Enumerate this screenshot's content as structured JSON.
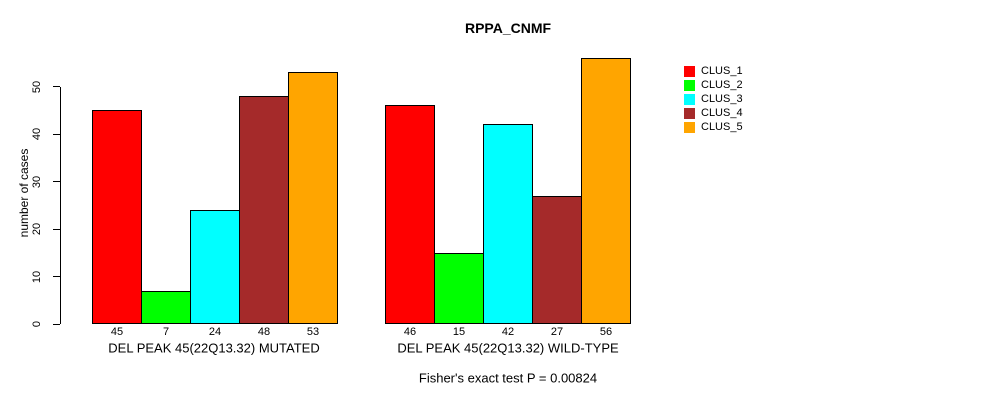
{
  "chart_data": {
    "type": "bar",
    "title": "RPPA_CNMF",
    "ylabel": "number of cases",
    "ylim": [
      0,
      56
    ],
    "yticks": [
      0,
      10,
      20,
      30,
      40,
      50
    ],
    "grid": false,
    "legend_position": "right",
    "series_names": [
      "CLUS_1",
      "CLUS_2",
      "CLUS_3",
      "CLUS_4",
      "CLUS_5"
    ],
    "series_colors": [
      "#FF0000",
      "#00FF00",
      "#00FFFF",
      "#A52A2A",
      "#FFA500"
    ],
    "groups": [
      {
        "label": "DEL PEAK 45(22Q13.32) MUTATED",
        "values": [
          45,
          7,
          24,
          48,
          53
        ]
      },
      {
        "label": "DEL PEAK 45(22Q13.32) WILD-TYPE",
        "values": [
          46,
          15,
          42,
          27,
          56
        ]
      }
    ],
    "annotation": "Fisher's exact test P = 0.00824"
  }
}
